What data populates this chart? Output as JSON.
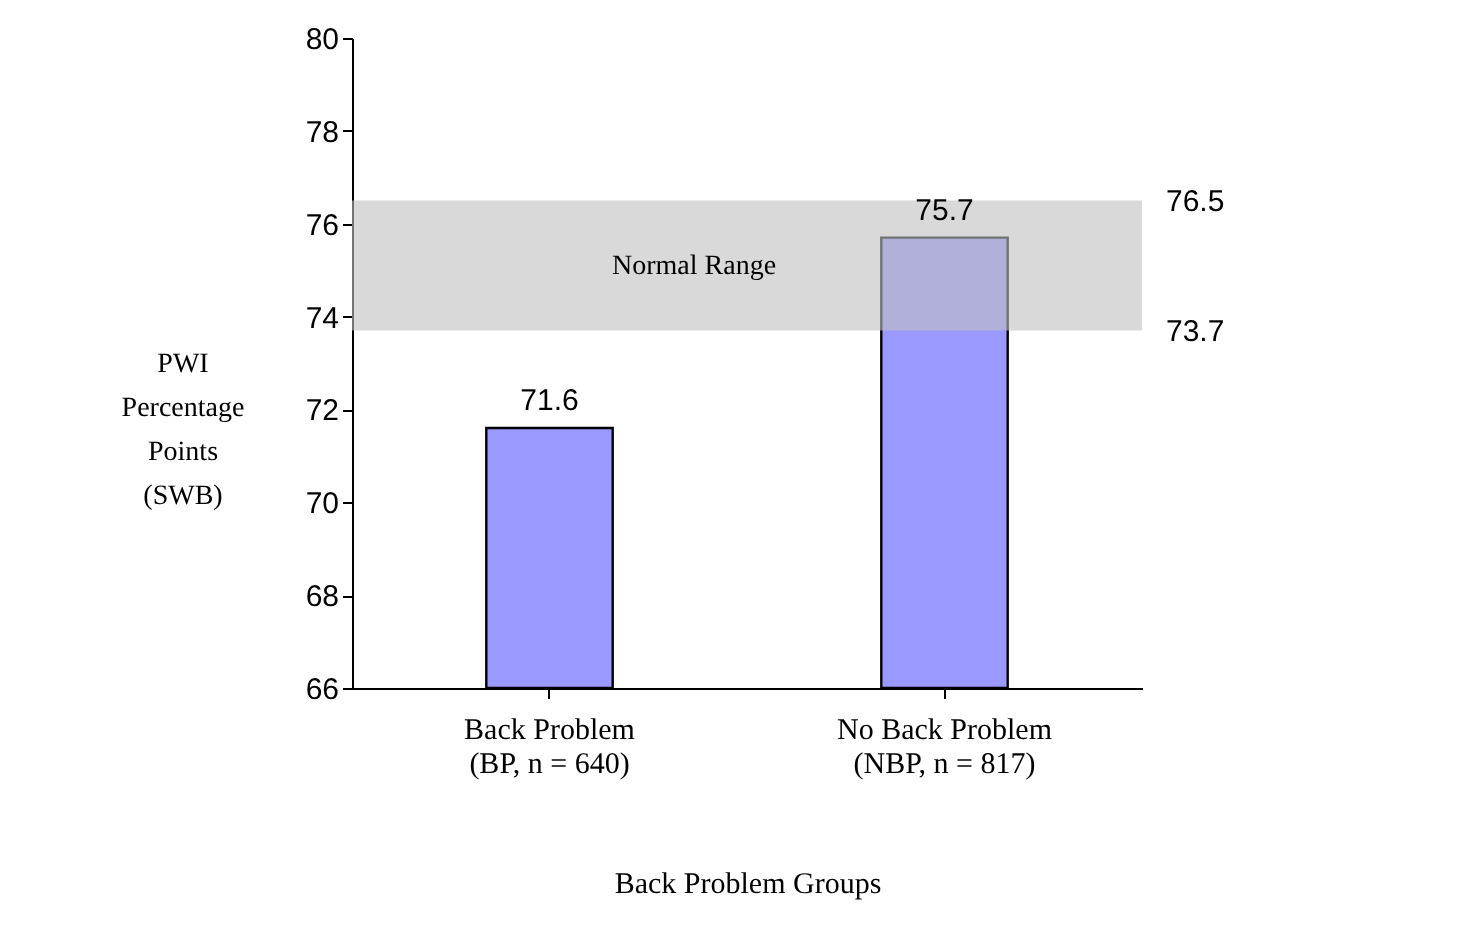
{
  "chart_data": {
    "type": "bar",
    "categories": [
      "Back Problem\n(BP, n = 640)",
      "No Back Problem\n(NBP, n = 817)"
    ],
    "values": [
      71.6,
      75.7
    ],
    "color": "#9999ff",
    "data_labels": true,
    "xlabel": "Back Problem Groups",
    "ylabel": "PWI Percentage Points (SWB)",
    "ylim": [
      66,
      80
    ],
    "yticks": [
      66,
      68,
      70,
      72,
      74,
      76,
      78,
      80
    ],
    "grid": false,
    "bands": [
      {
        "axis": "y",
        "from": 73.7,
        "to": 76.5,
        "label": "Normal Range",
        "color": "#c0c0c0"
      }
    ],
    "annotations": [
      "76.5",
      "73.7"
    ]
  }
}
